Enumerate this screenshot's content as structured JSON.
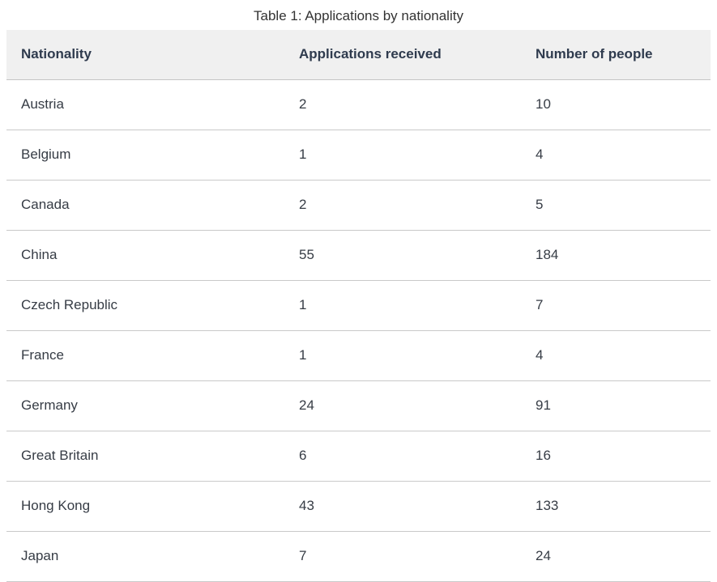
{
  "page": {
    "title": "Table 1: Applications by nationality"
  },
  "table": {
    "columns": [
      "Nationality",
      "Applications received",
      "Number of people"
    ],
    "rows": [
      [
        "Austria",
        "2",
        "10"
      ],
      [
        "Belgium",
        "1",
        "4"
      ],
      [
        "Canada",
        "2",
        "5"
      ],
      [
        "China",
        "55",
        "184"
      ],
      [
        "Czech Republic",
        "1",
        "7"
      ],
      [
        "France",
        "1",
        "4"
      ],
      [
        "Germany",
        "24",
        "91"
      ],
      [
        "Great Britain",
        "6",
        "16"
      ],
      [
        "Hong Kong",
        "43",
        "133"
      ],
      [
        "Japan",
        "7",
        "24"
      ]
    ]
  },
  "colors": {
    "title_text": "#333333",
    "header_bg": "#f0f0f0",
    "header_text": "#2f3b4e",
    "body_text": "#363c45",
    "header_border": "#c5c5c5",
    "row_border": "#c9c9c9"
  },
  "chart_data": {
    "type": "table",
    "title": "Table 1: Applications by nationality",
    "columns": [
      "Nationality",
      "Applications received",
      "Number of people"
    ],
    "rows": [
      [
        "Austria",
        2,
        10
      ],
      [
        "Belgium",
        1,
        4
      ],
      [
        "Canada",
        2,
        5
      ],
      [
        "China",
        55,
        184
      ],
      [
        "Czech Republic",
        1,
        7
      ],
      [
        "France",
        1,
        4
      ],
      [
        "Germany",
        24,
        91
      ],
      [
        "Great Britain",
        6,
        16
      ],
      [
        "Hong Kong",
        43,
        133
      ],
      [
        "Japan",
        7,
        24
      ]
    ]
  }
}
